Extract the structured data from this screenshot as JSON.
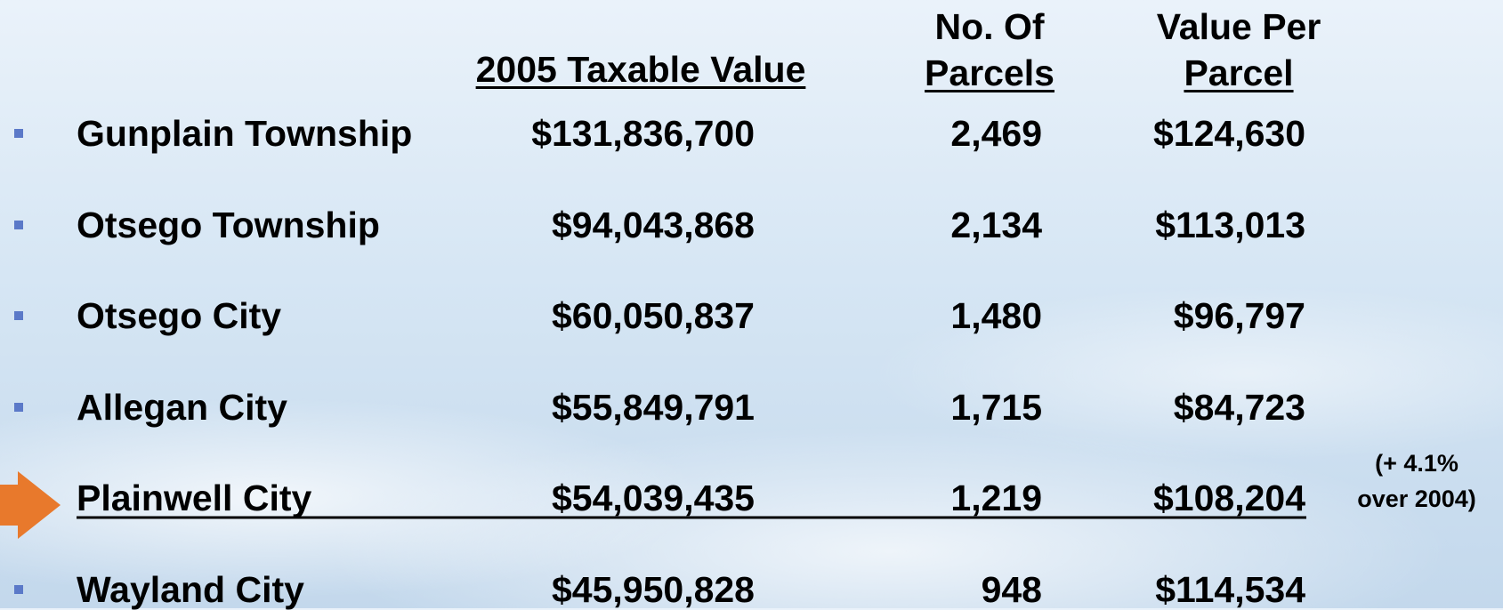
{
  "table": {
    "headers": [
      [
        "2005 Taxable Value"
      ],
      [
        "No. Of",
        "Parcels"
      ],
      [
        "Value Per",
        "Parcel"
      ]
    ],
    "rows": [
      [
        "Gunplain Township",
        "$131,836,700",
        "2,469",
        "$124,630"
      ],
      [
        "Otsego Township",
        "$94,043,868",
        "2,134",
        "$113,013"
      ],
      [
        "Otsego City",
        "$60,050,837",
        "1,480",
        "$96,797"
      ],
      [
        "Allegan City",
        "$55,849,791",
        "1,715",
        "$84,723"
      ],
      [
        "Plainwell City",
        "$54,039,435",
        "1,219",
        "$108,204"
      ],
      [
        "Wayland City",
        "$45,950,828",
        "948",
        "$114,534"
      ]
    ],
    "annotation": [
      "(+ 4.1%",
      "over 2004)"
    ]
  }
}
